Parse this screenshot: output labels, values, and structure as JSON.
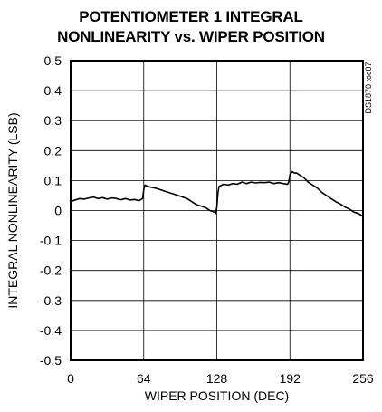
{
  "chart_data": {
    "type": "line",
    "title": [
      "POTENTIOMETER 1 INTEGRAL",
      "NONLINEARITY vs. WIPER POSITION"
    ],
    "xlabel": "WIPER POSITION (DEC)",
    "ylabel": "INTEGRAL NONLINEARITY (LSB)",
    "xlim": [
      0,
      256
    ],
    "ylim": [
      -0.5,
      0.5
    ],
    "xticks": [
      0,
      64,
      128,
      192,
      256
    ],
    "xtick_labels": [
      "0",
      "64",
      "128",
      "192",
      "256"
    ],
    "yticks": [
      0.5,
      0.4,
      0.3,
      0.2,
      0.1,
      0,
      -0.1,
      -0.2,
      -0.3,
      -0.4,
      -0.5
    ],
    "ytick_labels": [
      "0.5",
      "0.4",
      "0.3",
      "0.2",
      "0.1",
      "0",
      "-0.1",
      "-0.2",
      "-0.3",
      "-0.4",
      "-0.5"
    ],
    "grid": true,
    "note": "DS1870 toc07",
    "series": [
      {
        "x": [
          0,
          4,
          8,
          12,
          16,
          20,
          24,
          28,
          32,
          36,
          40,
          44,
          48,
          52,
          56,
          60,
          63,
          64,
          65,
          66,
          70,
          74,
          78,
          82,
          86,
          90,
          94,
          98,
          102,
          106,
          110,
          114,
          118,
          122,
          126,
          127,
          128,
          129,
          130,
          134,
          138,
          142,
          146,
          150,
          154,
          158,
          162,
          166,
          170,
          174,
          178,
          182,
          186,
          190,
          191,
          192,
          194,
          196,
          198,
          200,
          204,
          208,
          212,
          216,
          220,
          224,
          228,
          232,
          236,
          240,
          244,
          248,
          252,
          256
        ],
        "y": [
          0.03,
          0.035,
          0.04,
          0.038,
          0.042,
          0.045,
          0.04,
          0.043,
          0.038,
          0.042,
          0.04,
          0.036,
          0.04,
          0.035,
          0.037,
          0.033,
          0.04,
          0.07,
          0.085,
          0.083,
          0.078,
          0.075,
          0.07,
          0.065,
          0.06,
          0.055,
          0.05,
          0.045,
          0.04,
          0.03,
          0.02,
          0.015,
          0.01,
          0.0,
          -0.005,
          -0.01,
          0.01,
          0.06,
          0.08,
          0.088,
          0.085,
          0.09,
          0.088,
          0.095,
          0.09,
          0.095,
          0.092,
          0.094,
          0.093,
          0.095,
          0.09,
          0.093,
          0.09,
          0.088,
          0.095,
          0.12,
          0.13,
          0.125,
          0.125,
          0.12,
          0.11,
          0.095,
          0.085,
          0.075,
          0.06,
          0.05,
          0.04,
          0.03,
          0.022,
          0.012,
          0.005,
          -0.005,
          -0.01,
          -0.02
        ]
      }
    ]
  }
}
